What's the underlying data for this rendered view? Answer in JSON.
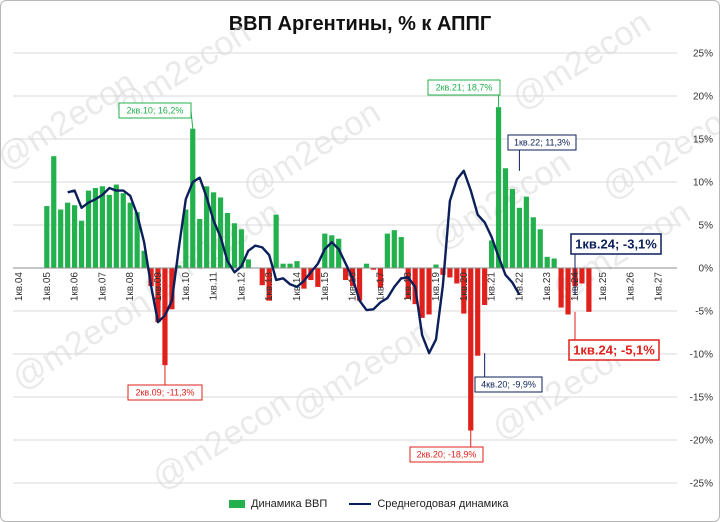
{
  "title": "ВВП Аргентины, % к АППГ",
  "watermark": "@m2econ",
  "colors": {
    "positive": "#22b14c",
    "negative": "#e0201b",
    "line": "#0b1f5a",
    "grid": "#d9d9d9"
  },
  "chart_data": {
    "type": "bar",
    "x_start": "1кв.04",
    "y_ticks": [
      "25%",
      "20%",
      "15%",
      "10%",
      "5%",
      "0%",
      "-5%",
      "-10%",
      "-15%",
      "-20%",
      "-25%"
    ],
    "ylim": [
      -25,
      25
    ],
    "x_tick_labels": [
      "1кв.04",
      "1кв.05",
      "1кв.06",
      "1кв.07",
      "1кв.08",
      "1кв.09",
      "1кв.10",
      "1кв.11",
      "1кв.12",
      "1кв.13",
      "1кв.14",
      "1кв.15",
      "1кв.16",
      "1кв.17",
      "1кв.18",
      "1кв.19",
      "1кв.20",
      "1кв.21",
      "1кв.22",
      "1кв.23",
      "1кв.24",
      "1кв.25",
      "1кв.26",
      "1кв.27"
    ],
    "series": [
      {
        "name": "Динамика ВВП",
        "kind": "bar",
        "start_index": 4,
        "values": [
          7.2,
          13.0,
          6.8,
          7.6,
          7.3,
          5.5,
          9.0,
          9.3,
          9.5,
          8.5,
          9.7,
          8.7,
          7.6,
          6.5,
          2.0,
          -2.1,
          -6.3,
          -11.3,
          -4.8,
          0.3,
          6.8,
          16.2,
          5.7,
          9.5,
          8.8,
          8.2,
          6.4,
          5.2,
          4.5,
          1.0,
          0.0,
          -2.0,
          -3.8,
          6.2,
          0.5,
          0.5,
          0.8,
          -2.4,
          -1.4,
          -2.2,
          4.0,
          3.8,
          3.4,
          -1.4,
          -2.1,
          -3.8,
          0.5,
          -0.2,
          -2.3,
          4.0,
          4.4,
          3.6,
          -3.6,
          -4.2,
          -5.8,
          -5.4,
          0.4,
          -0.8,
          -1.1,
          -1.8,
          -5.3,
          -18.9,
          -10.2,
          -4.3,
          3.2,
          18.7,
          11.6,
          9.2,
          7.0,
          8.3,
          5.9,
          4.5,
          1.3,
          1.1,
          -4.6,
          -5.4,
          -2.1,
          -1.8,
          -5.1
        ]
      },
      {
        "name": "Среднегодовая динамика",
        "kind": "line",
        "start_index": 7,
        "values": [
          8.8,
          9.0,
          7.0,
          7.6,
          8.0,
          8.5,
          9.3,
          9.0,
          9.0,
          8.4,
          6.2,
          3.0,
          -2.1,
          -6.3,
          -5.5,
          -3.8,
          2.3,
          8.0,
          10.0,
          10.5,
          8.2,
          5.5,
          3.6,
          0.8,
          -0.5,
          0.2,
          2.0,
          2.6,
          2.4,
          1.5,
          -1.4,
          -1.2,
          -1.9,
          -2.2,
          -1.5,
          -0.5,
          0.5,
          2.2,
          3.0,
          2.2,
          0.5,
          -1.2,
          -3.8,
          -4.9,
          -4.8,
          -4.0,
          -3.5,
          -2.2,
          -1.2,
          -1.1,
          -2.2,
          -7.8,
          -9.9,
          -8.3,
          -2.0,
          7.8,
          10.3,
          11.3,
          9.0,
          6.2,
          5.3,
          3.6,
          1.3,
          -0.8,
          -1.7,
          -3.1
        ]
      }
    ],
    "annotations": [
      {
        "text": "2кв.10; 16,2%",
        "x_index": 25,
        "y": 16.2,
        "color": "#22b14c"
      },
      {
        "text": "2кв.09; -11,3%",
        "x_index": 21,
        "y": -11.3,
        "color": "#e0201b"
      },
      {
        "text": "2кв.21; 18,7%",
        "x_index": 69,
        "y": 18.7,
        "color": "#22b14c"
      },
      {
        "text": "1кв.22; 11,3%",
        "x_index": 72,
        "y": 11.3,
        "color": "#0b1f5a"
      },
      {
        "text": "2кв.20; -18,9%",
        "x_index": 65,
        "y": -18.9,
        "color": "#e0201b"
      },
      {
        "text": "4кв.20; -9,9%",
        "x_index": 67,
        "y": -9.9,
        "color": "#0b1f5a"
      },
      {
        "text": "1кв.24; -3,1%",
        "x_index": 80,
        "y": -3.1,
        "color": "#0b1f5a"
      },
      {
        "text": "1кв.24; -5,1%",
        "x_index": 80,
        "y": -5.1,
        "color": "#e0201b"
      }
    ],
    "grid": true,
    "legend_position": "bottom"
  }
}
